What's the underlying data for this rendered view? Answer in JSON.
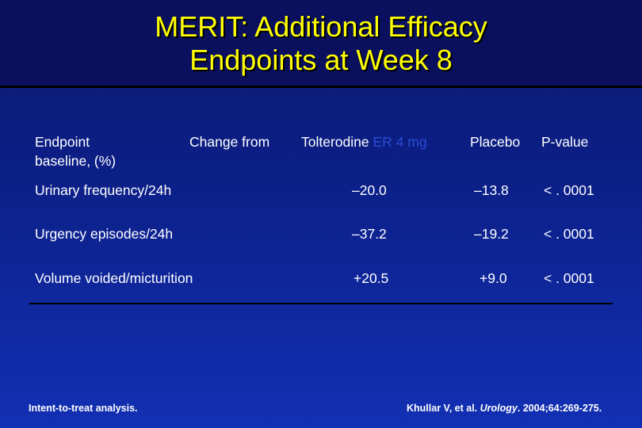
{
  "slide": {
    "title_line1": "MERIT: Additional Efficacy",
    "title_line2": "Endpoints at Week 8"
  },
  "table": {
    "header": {
      "endpoint": "Endpoint",
      "change_from": "Change from",
      "baseline": "baseline, (%)",
      "tolterodine": "Tolterodine",
      "tolterodine_faded": "ER 4 mg",
      "placebo": "Placebo",
      "pvalue": "P-value"
    },
    "rows": [
      {
        "endpoint": "Urinary frequency/24h",
        "tolterodine": "–20.0",
        "placebo": "–13.8",
        "pvalue": "< . 0001"
      },
      {
        "endpoint": "Urgency episodes/24h",
        "tolterodine": "–37.2",
        "placebo": "–19.2",
        "pvalue": "< . 0001"
      },
      {
        "endpoint": "Volume voided/micturition",
        "tolterodine": "+20.5",
        "placebo": "+9.0",
        "pvalue": "< . 0001"
      }
    ]
  },
  "footer": {
    "left_note": "Intent-to-treat analysis.",
    "ref_authors": "Khullar V, et al. ",
    "ref_journal": "Urology",
    "ref_rest": ". 2004;64:269-275."
  },
  "colors": {
    "title_text": "#ffff00",
    "background_top": "#0b1a6e",
    "background_bottom": "#1230b4",
    "body_text": "#ffffff"
  }
}
